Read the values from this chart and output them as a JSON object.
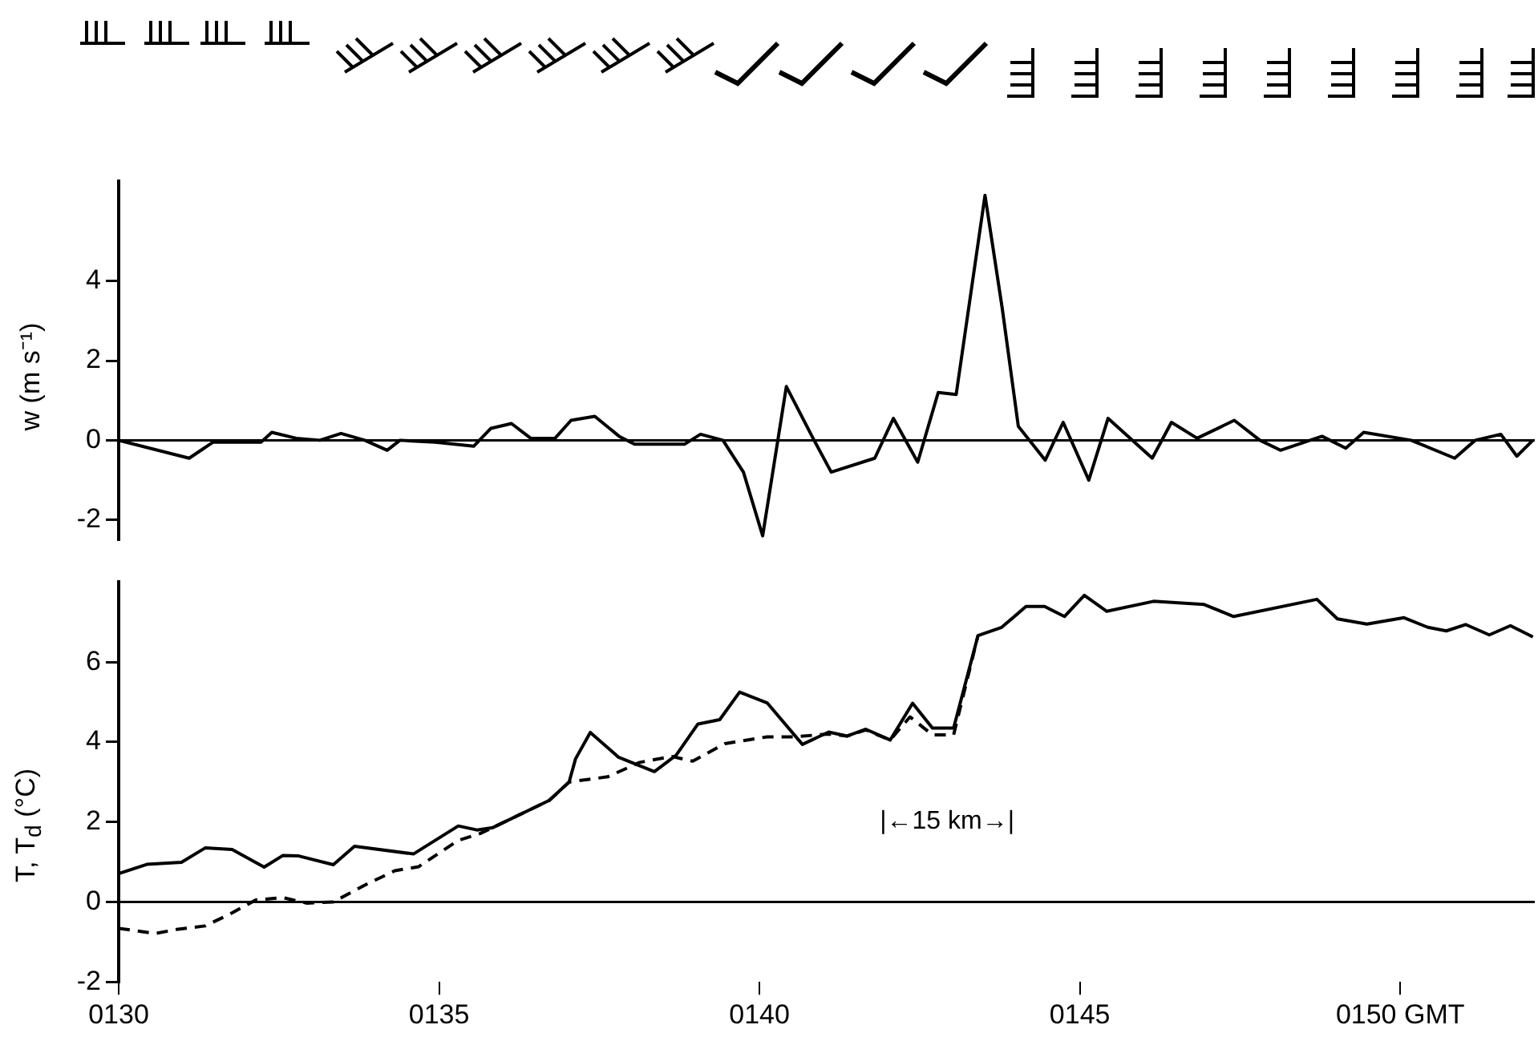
{
  "chart_data": [
    {
      "type": "line",
      "ylabel": "w (m s⁻¹)",
      "xlim": [
        130,
        152.1
      ],
      "ylim": [
        -2.5,
        6.5
      ],
      "yticks": [
        -2,
        0,
        2,
        4
      ],
      "tick_labels": "y",
      "grid": false,
      "legend": false,
      "marker": "none",
      "ref_lines": [
        {
          "axis": "y",
          "value": 0,
          "color": "#000000"
        }
      ],
      "series": [
        {
          "color": "#000000",
          "line_style": "solid",
          "x": [
            130,
            131.1,
            131.47,
            132.22,
            132.39,
            132.77,
            133.14,
            133.47,
            133.84,
            134.19,
            134.39,
            134.94,
            135.54,
            135.81,
            136.13,
            136.43,
            136.81,
            137.06,
            137.43,
            137.81,
            138.05,
            138.83,
            139.08,
            139.43,
            139.75,
            140.05,
            140.42,
            140.82,
            141.12,
            141.8,
            142.09,
            142.47,
            142.79,
            143.07,
            143.52,
            143.79,
            144.04,
            144.46,
            144.74,
            145.14,
            145.44,
            146.13,
            146.43,
            146.83,
            147.41,
            147.81,
            148.13,
            148.78,
            149.15,
            149.43,
            150.17,
            150.85,
            151.17,
            151.57,
            151.82,
            152.07
          ],
          "values": [
            0,
            -0.45,
            -0.05,
            -0.05,
            0.2,
            0.05,
            0,
            0.17,
            0,
            -0.25,
            0,
            -0.05,
            -0.15,
            0.3,
            0.42,
            0.05,
            0.05,
            0.5,
            0.6,
            0.1,
            -0.1,
            -0.1,
            0.15,
            0,
            -0.8,
            -2.4,
            1.35,
            0.1,
            -0.8,
            -0.45,
            0.55,
            -0.55,
            1.2,
            1.15,
            6.15,
            3.3,
            0.35,
            -0.5,
            0.45,
            -1.0,
            0.55,
            -0.45,
            0.45,
            0.05,
            0.5,
            0,
            -0.25,
            0.1,
            -0.2,
            0.2,
            0,
            -0.45,
            0,
            0.15,
            -0.4,
            0
          ]
        }
      ]
    },
    {
      "type": "line",
      "ylabel": "T, T$_{d}$ (°C)",
      "xlim": [
        130,
        152.1
      ],
      "ylim": [
        -2,
        8
      ],
      "yticks": [
        -2,
        0,
        2,
        4,
        6
      ],
      "xticks": [
        {
          "value": 130,
          "label": "0130"
        },
        {
          "value": 135,
          "label": "0135"
        },
        {
          "value": 140,
          "label": "0140"
        },
        {
          "value": 145,
          "label": "0145"
        },
        {
          "value": 150,
          "label": "0150 GMT"
        }
      ],
      "grid": false,
      "legend": false,
      "marker": "none",
      "ref_lines": [
        {
          "axis": "y",
          "value": 0,
          "color": "#000000"
        }
      ],
      "annotations": [
        "|←15 km→|"
      ],
      "series": [
        {
          "color": "#000000",
          "line_style": "solid",
          "x": [
            130,
            130.44,
            130.98,
            131.35,
            131.77,
            132.27,
            132.56,
            132.81,
            133.35,
            133.68,
            134.6,
            135.3,
            135.59,
            135.84,
            136.72,
            137.03,
            137.13,
            137.36,
            137.8,
            138.36,
            138.7,
            139.04,
            139.38,
            139.69,
            140.12,
            140.67,
            141.08,
            141.37,
            141.66,
            142.04,
            142.39,
            142.7,
            143.03,
            143.41,
            143.78,
            144.16,
            144.45,
            144.76,
            145.07,
            145.42,
            146.15,
            146.94,
            147.4,
            148.7,
            149.02,
            149.48,
            150.06,
            150.43,
            150.72,
            151.02,
            151.39,
            151.72,
            152.07
          ],
          "values": [
            0.71,
            0.94,
            0.99,
            1.35,
            1.31,
            0.87,
            1.16,
            1.15,
            0.93,
            1.39,
            1.2,
            1.9,
            1.8,
            1.86,
            2.54,
            3.0,
            3.58,
            4.24,
            3.62,
            3.26,
            3.67,
            4.45,
            4.56,
            5.25,
            4.98,
            3.94,
            4.25,
            4.15,
            4.32,
            4.05,
            4.97,
            4.35,
            4.35,
            6.66,
            6.87,
            7.39,
            7.39,
            7.14,
            7.67,
            7.27,
            7.52,
            7.44,
            7.14,
            7.57,
            7.08,
            6.95,
            7.11,
            6.87,
            6.78,
            6.94,
            6.68,
            6.91,
            6.63
          ]
        },
        {
          "color": "#000000",
          "line_style": "dashed",
          "x": [
            130,
            130.57,
            130.9,
            131.35,
            131.73,
            132.14,
            132.56,
            132.94,
            133.35,
            133.89,
            134.31,
            134.68,
            135.3,
            135.64,
            135.84,
            136.72,
            137.03,
            137.63,
            138.13,
            138.63,
            138.96,
            139.46,
            140.12,
            140.54,
            141.08,
            141.37,
            141.66,
            142.04,
            142.35,
            142.7,
            143.03,
            143.41
          ],
          "values": [
            -0.66,
            -0.79,
            -0.69,
            -0.6,
            -0.31,
            0.05,
            0.11,
            -0.03,
            0,
            0.46,
            0.78,
            0.88,
            1.54,
            1.71,
            1.86,
            2.54,
            3.0,
            3.13,
            3.49,
            3.64,
            3.52,
            3.96,
            4.13,
            4.13,
            4.2,
            4.15,
            4.3,
            4.05,
            4.63,
            4.18,
            4.18,
            6.66
          ]
        }
      ]
    }
  ]
}
